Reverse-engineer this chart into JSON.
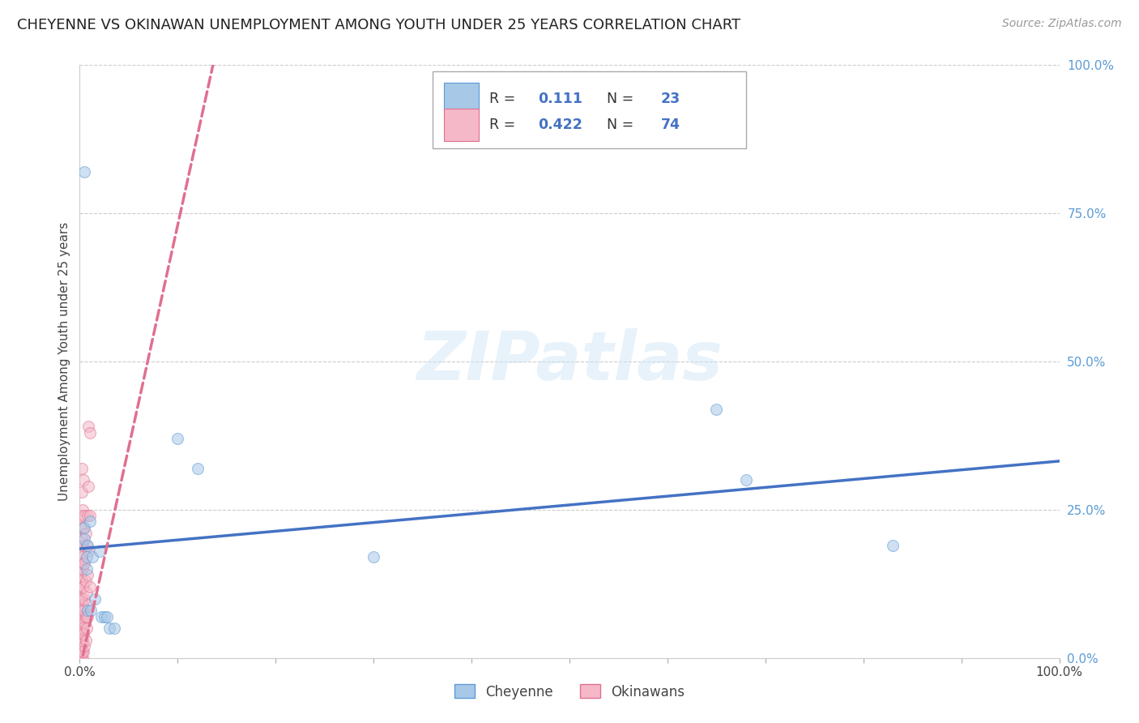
{
  "title": "CHEYENNE VS OKINAWAN UNEMPLOYMENT AMONG YOUTH UNDER 25 YEARS CORRELATION CHART",
  "source": "Source: ZipAtlas.com",
  "ylabel": "Unemployment Among Youth under 25 years",
  "cheyenne_color": "#a8c8e8",
  "cheyenne_edge": "#5b9bd5",
  "okinawan_color": "#f4b8c8",
  "okinawan_edge": "#e07090",
  "trend_cheyenne_color": "#4472c4",
  "trend_okinawan_color": "#e07090",
  "R_cheyenne": 0.111,
  "N_cheyenne": 23,
  "R_okinawan": 0.422,
  "N_okinawan": 74,
  "cheyenne_x": [
    0.005,
    0.005,
    0.007,
    0.007,
    0.008,
    0.008,
    0.01,
    0.011,
    0.013,
    0.015,
    0.02,
    0.022,
    0.025,
    0.028,
    0.03,
    0.035,
    0.1,
    0.12,
    0.3,
    0.65,
    0.68,
    0.83,
    0.005
  ],
  "cheyenne_y": [
    0.22,
    0.2,
    0.17,
    0.15,
    0.19,
    0.08,
    0.23,
    0.08,
    0.17,
    0.1,
    0.18,
    0.07,
    0.07,
    0.07,
    0.05,
    0.05,
    0.37,
    0.32,
    0.17,
    0.42,
    0.3,
    0.19,
    0.82
  ],
  "okinawan_x": [
    0.001,
    0.001,
    0.001,
    0.001,
    0.001,
    0.001,
    0.001,
    0.001,
    0.001,
    0.001,
    0.001,
    0.001,
    0.001,
    0.001,
    0.001,
    0.001,
    0.001,
    0.001,
    0.001,
    0.001,
    0.002,
    0.002,
    0.002,
    0.002,
    0.002,
    0.002,
    0.002,
    0.002,
    0.002,
    0.002,
    0.002,
    0.002,
    0.002,
    0.002,
    0.002,
    0.003,
    0.003,
    0.003,
    0.003,
    0.003,
    0.003,
    0.003,
    0.003,
    0.003,
    0.003,
    0.004,
    0.004,
    0.004,
    0.004,
    0.004,
    0.004,
    0.004,
    0.005,
    0.005,
    0.005,
    0.005,
    0.005,
    0.006,
    0.006,
    0.006,
    0.006,
    0.007,
    0.007,
    0.007,
    0.008,
    0.008,
    0.008,
    0.009,
    0.009,
    0.009,
    0.009,
    0.01,
    0.01,
    0.01
  ],
  "okinawan_y": [
    0.0,
    0.005,
    0.01,
    0.015,
    0.02,
    0.025,
    0.03,
    0.035,
    0.04,
    0.045,
    0.05,
    0.06,
    0.07,
    0.08,
    0.1,
    0.12,
    0.14,
    0.16,
    0.18,
    0.22,
    0.0,
    0.01,
    0.02,
    0.03,
    0.04,
    0.06,
    0.08,
    0.1,
    0.13,
    0.15,
    0.17,
    0.2,
    0.24,
    0.28,
    0.32,
    0.0,
    0.01,
    0.03,
    0.05,
    0.07,
    0.09,
    0.12,
    0.15,
    0.19,
    0.25,
    0.01,
    0.04,
    0.08,
    0.12,
    0.16,
    0.22,
    0.3,
    0.02,
    0.06,
    0.1,
    0.16,
    0.24,
    0.03,
    0.07,
    0.13,
    0.21,
    0.05,
    0.11,
    0.19,
    0.07,
    0.14,
    0.24,
    0.09,
    0.18,
    0.29,
    0.39,
    0.12,
    0.24,
    0.38
  ],
  "ytick_labels": [
    "0.0%",
    "25.0%",
    "50.0%",
    "75.0%",
    "100.0%"
  ],
  "ytick_values": [
    0.0,
    0.25,
    0.5,
    0.75,
    1.0
  ],
  "xtick_values": [
    0.0,
    0.1,
    0.2,
    0.3,
    0.4,
    0.5,
    0.6,
    0.7,
    0.8,
    0.9,
    1.0
  ],
  "xtick_labels": [
    "0.0%",
    "",
    "",
    "",
    "",
    "",
    "",
    "",
    "",
    "",
    "100.0%"
  ],
  "background_color": "#ffffff",
  "grid_color": "#cccccc",
  "legend_label_cheyenne": "Cheyenne",
  "legend_label_okinawan": "Okinawans",
  "title_fontsize": 13,
  "axis_label_fontsize": 11,
  "tick_fontsize": 11,
  "source_fontsize": 10,
  "marker_size": 100,
  "marker_alpha": 0.55
}
